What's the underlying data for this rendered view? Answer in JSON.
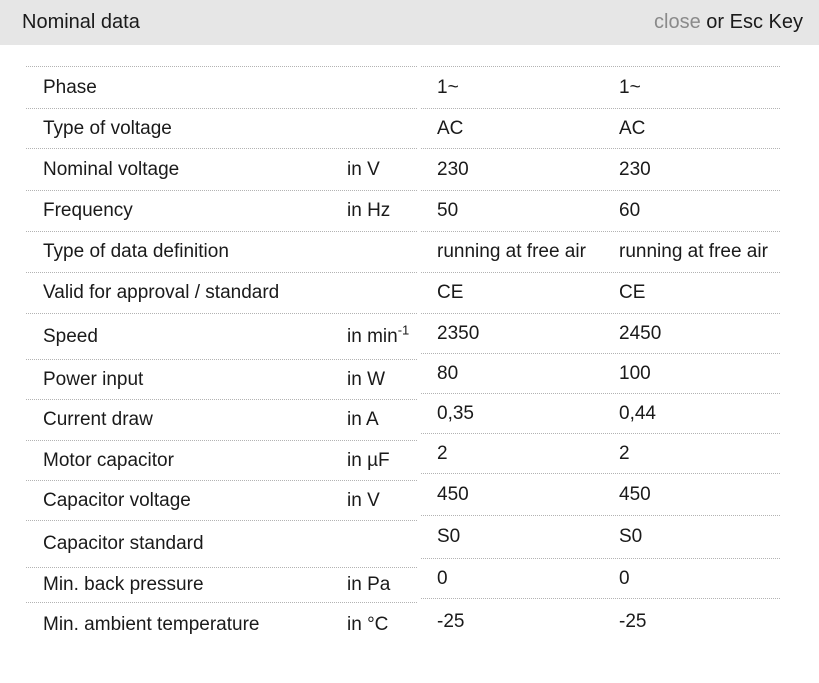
{
  "header": {
    "title": "Nominal data",
    "close_label": "close",
    "close_suffix": " or Esc Key"
  },
  "colors": {
    "header_bg": "#e6e6e6",
    "text": "#1a1a1a",
    "close_link": "#8a8a8a",
    "divider": "#b3b3b3"
  },
  "table": {
    "rows": [
      {
        "label": "Phase",
        "unit": "",
        "values": [
          "1~",
          "1~"
        ]
      },
      {
        "label": "Type of voltage",
        "unit": "",
        "values": [
          "AC",
          "AC"
        ]
      },
      {
        "label": "Nominal voltage",
        "unit": "in V",
        "values": [
          "230",
          "230"
        ]
      },
      {
        "label": "Frequency",
        "unit": "in Hz",
        "values": [
          "50",
          "60"
        ]
      },
      {
        "label": "Type of data definition",
        "unit": "",
        "values": [
          "running at free air",
          "running at free air"
        ]
      },
      {
        "label": "Valid for approval / standard",
        "unit": "",
        "values": [
          "CE",
          "CE"
        ]
      },
      {
        "label": "Speed",
        "unit": "in min",
        "unit_sup": "-1",
        "values": [
          "2350",
          "2450"
        ]
      },
      {
        "label": "Power input",
        "unit": "in W",
        "values": [
          "80",
          "100"
        ]
      },
      {
        "label": "Current draw",
        "unit": "in A",
        "values": [
          "0,35",
          "0,44"
        ]
      },
      {
        "label": "Motor capacitor",
        "unit": "in µF",
        "values": [
          "2",
          "2"
        ]
      },
      {
        "label": "Capacitor voltage",
        "unit": "in V",
        "values": [
          "450",
          "450"
        ]
      },
      {
        "label": "Capacitor standard",
        "unit": "",
        "values": [
          "S0",
          "S0"
        ]
      },
      {
        "label": "Min. back pressure",
        "unit": "in Pa",
        "values": [
          "0",
          "0"
        ]
      },
      {
        "label": "Min. ambient temperature",
        "unit": "in °C",
        "values": [
          "-25",
          "-25"
        ]
      }
    ]
  }
}
